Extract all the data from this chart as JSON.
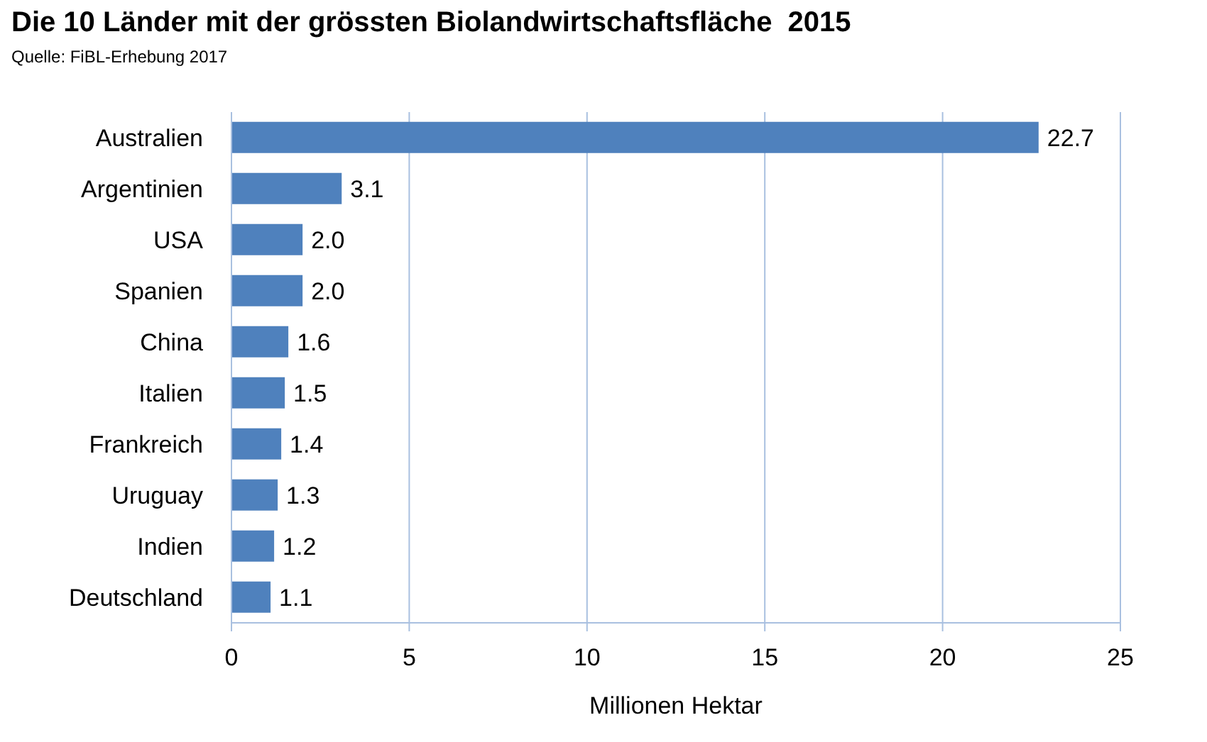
{
  "chart_data": {
    "type": "bar",
    "orientation": "horizontal",
    "title": "Die 10 Länder mit der grössten Biolandwirtschaftsfläche  2015",
    "annotations": [
      "Quelle: FiBL-Erhebung 2017"
    ],
    "categories": [
      "Australien",
      "Argentinien",
      "USA",
      "Spanien",
      "China",
      "Italien",
      "Frankreich",
      "Uruguay",
      "Indien",
      "Deutschland"
    ],
    "values": [
      22.7,
      3.1,
      2.0,
      2.0,
      1.6,
      1.5,
      1.4,
      1.3,
      1.2,
      1.1
    ],
    "value_labels": [
      "22.7",
      "3.1",
      "2.0",
      "2.0",
      "1.6",
      "1.5",
      "1.4",
      "1.3",
      "1.2",
      "1.1"
    ],
    "color": "#4f81bd",
    "xlabel": "Millionen Hektar",
    "xlim": [
      0,
      25
    ],
    "xticks": [
      0,
      5,
      10,
      15,
      20,
      25
    ],
    "grid": "x"
  }
}
